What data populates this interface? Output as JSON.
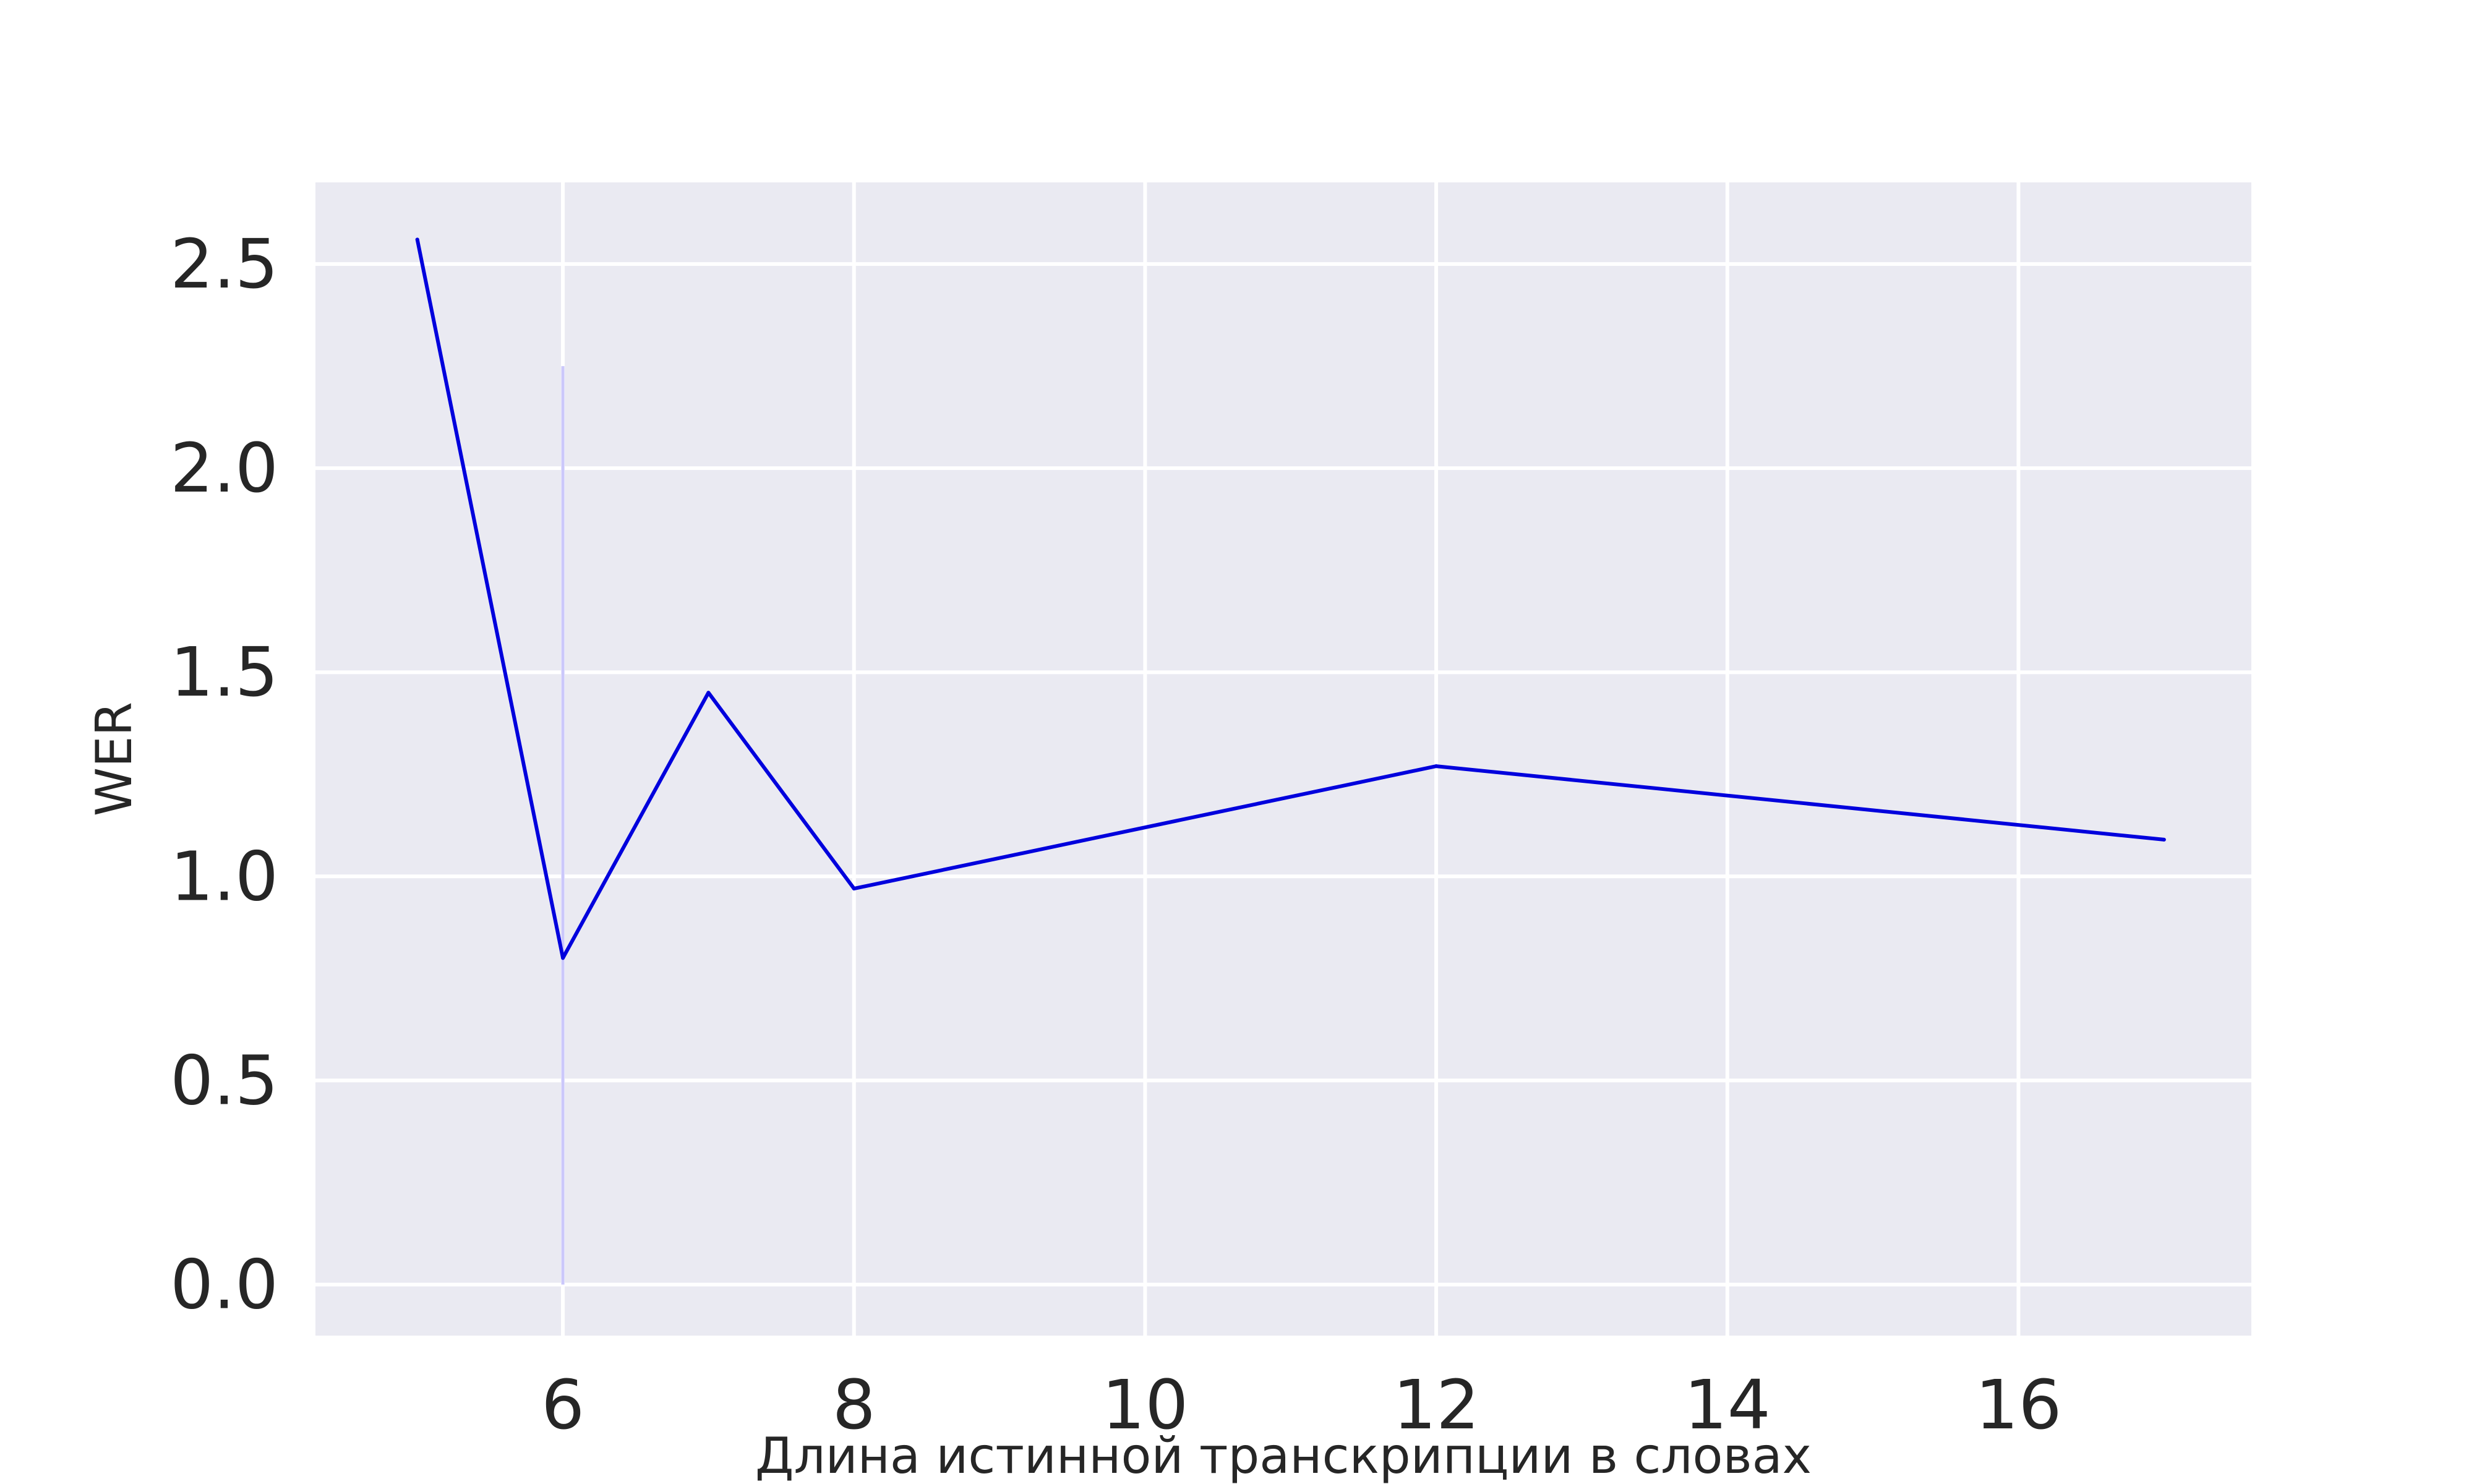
{
  "chart_data": {
    "type": "line",
    "title": "",
    "xlabel": "Длина истинной транскрипции в словах",
    "ylabel": "WER",
    "xlim": [
      4.3,
      17.6
    ],
    "ylim": [
      -0.125,
      2.7
    ],
    "xticks": [
      6,
      8,
      10,
      12,
      14,
      16
    ],
    "yticks": [
      0.0,
      0.5,
      1.0,
      1.5,
      2.0,
      2.5
    ],
    "xtick_labels": [
      "6",
      "8",
      "10",
      "12",
      "14",
      "16"
    ],
    "ytick_labels": [
      "0.0",
      "0.5",
      "1.0",
      "1.5",
      "2.0",
      "2.5"
    ],
    "grid": true,
    "legend": "none",
    "background_color": "#eaeaf2",
    "grid_color": "#ffffff",
    "line_color": "#0000dd",
    "error_color": "#cbc8fb",
    "series": [
      {
        "x": [
          5,
          6,
          7,
          8,
          12,
          17
        ],
        "y": [
          2.56,
          0.8,
          1.45,
          0.97,
          1.27,
          1.09
        ],
        "error_low": [
          null,
          0.0,
          null,
          null,
          null,
          null
        ],
        "error_high": [
          null,
          2.25,
          null,
          null,
          null,
          null
        ]
      }
    ]
  }
}
